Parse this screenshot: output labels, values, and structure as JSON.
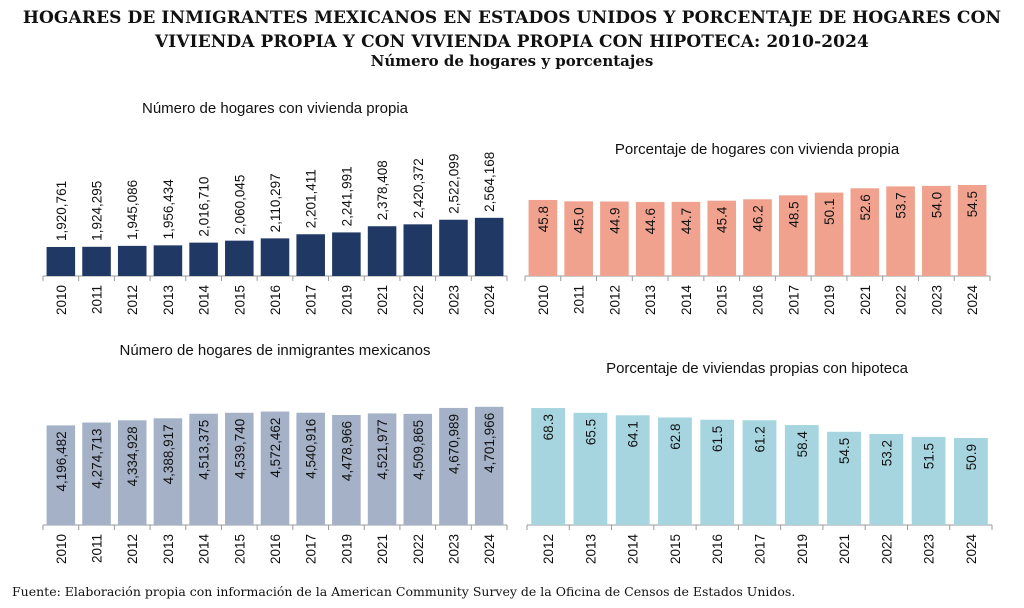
{
  "header": {
    "title": "HOGARES DE INMIGRANTES MEXICANOS EN ESTADOS UNIDOS Y PORCENTAJE DE HOGARES CON VIVIENDA PROPIA Y CON VIVIENDA PROPIA CON HIPOTECA: 2010-2024",
    "subtitle": "Número de hogares y porcentajes"
  },
  "footer": "Fuente: Elaboración propia con información de la American Community Survey de la Oficina de Censos de Estados Unidos.",
  "chart_data": [
    {
      "type": "bar",
      "title": "Número de hogares con vivienda propia",
      "categories": [
        "2010",
        "2011",
        "2012",
        "2013",
        "2014",
        "2015",
        "2016",
        "2017",
        "2019",
        "2021",
        "2022",
        "2023",
        "2024"
      ],
      "values": [
        1920761,
        1924295,
        1945086,
        1956434,
        2016710,
        2060045,
        2110297,
        2201411,
        2241991,
        2378408,
        2420372,
        2522099,
        2564168
      ],
      "labels": [
        "1,920,761",
        "1,924,295",
        "1,945,086",
        "1,956,434",
        "2,016,710",
        "2,060,045",
        "2,110,297",
        "2,201,411",
        "2,241,991",
        "2,378,408",
        "2,420,372",
        "2,522,099",
        "2,564,168"
      ],
      "color": "#1f3864",
      "grid": false
    },
    {
      "type": "bar",
      "title": "Porcentaje de hogares con vivienda propia",
      "categories": [
        "2010",
        "2011",
        "2012",
        "2013",
        "2014",
        "2015",
        "2016",
        "2017",
        "2019",
        "2021",
        "2022",
        "2023",
        "2024"
      ],
      "values": [
        45.8,
        45.0,
        44.9,
        44.6,
        44.7,
        45.4,
        46.2,
        48.5,
        50.1,
        52.6,
        53.7,
        54.0,
        54.5
      ],
      "labels": [
        "45.8",
        "45.0",
        "44.9",
        "44.6",
        "44.7",
        "45.4",
        "46.2",
        "48.5",
        "50.1",
        "52.6",
        "53.7",
        "54.0",
        "54.5"
      ],
      "color": "#f0a28e",
      "grid": false
    },
    {
      "type": "bar",
      "title": "Número de hogares de inmigrantes mexicanos",
      "categories": [
        "2010",
        "2011",
        "2012",
        "2013",
        "2014",
        "2015",
        "2016",
        "2017",
        "2019",
        "2021",
        "2022",
        "2023",
        "2024"
      ],
      "values": [
        4196482,
        4274713,
        4334928,
        4388917,
        4513375,
        4539740,
        4572462,
        4540916,
        4478966,
        4521977,
        4509865,
        4670989,
        4701966
      ],
      "labels": [
        "4,196,482",
        "4,274,713",
        "4,334,928",
        "4,388,917",
        "4,513,375",
        "4,539,740",
        "4,572,462",
        "4,540,916",
        "4,478,966",
        "4,521,977",
        "4,509,865",
        "4,670,989",
        "4,701,966"
      ],
      "color": "#a4b1c6",
      "grid": false
    },
    {
      "type": "bar",
      "title": "Porcentaje de viviendas propias con hipoteca",
      "categories": [
        "2012",
        "2013",
        "2014",
        "2015",
        "2016",
        "2017",
        "2019",
        "2021",
        "2022",
        "2023",
        "2024"
      ],
      "values": [
        68.3,
        65.5,
        64.1,
        62.8,
        61.5,
        61.2,
        58.4,
        54.5,
        53.2,
        51.5,
        50.9
      ],
      "labels": [
        "68.3",
        "65.5",
        "64.1",
        "62.8",
        "61.5",
        "61.2",
        "58.4",
        "54.5",
        "53.2",
        "51.5",
        "50.9"
      ],
      "color": "#a6d5e0",
      "grid": false
    }
  ]
}
